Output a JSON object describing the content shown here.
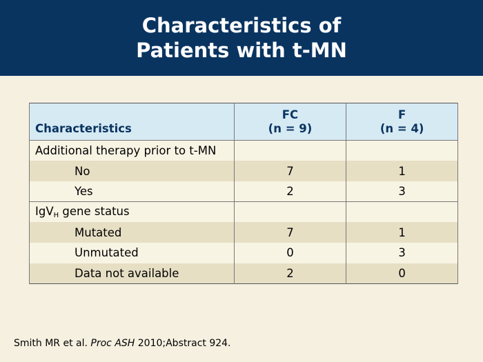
{
  "header": {
    "title_line1": "Characteristics of",
    "title_line2": "Patients with t-MN"
  },
  "table": {
    "columns": {
      "characteristics": "Characteristics",
      "fc_name": "FC",
      "fc_n": "(n = 9)",
      "f_name": "F",
      "f_n": "(n = 4)"
    },
    "section1": {
      "label": "Additional therapy prior to t-MN",
      "rows": [
        {
          "label": "No",
          "fc": "7",
          "f": "1"
        },
        {
          "label": "Yes",
          "fc": "2",
          "f": "3"
        }
      ]
    },
    "section2": {
      "label_prefix": "IgV",
      "label_sub": "H",
      "label_suffix": " gene status",
      "rows": [
        {
          "label": "Mutated",
          "fc": "7",
          "f": "1"
        },
        {
          "label": "Unmutated",
          "fc": "0",
          "f": "3"
        },
        {
          "label": "Data not available",
          "fc": "2",
          "f": "0"
        }
      ]
    }
  },
  "citation": {
    "prefix": "Smith MR et al. ",
    "journal": "Proc ASH",
    "suffix": " 2010;Abstract 924."
  }
}
